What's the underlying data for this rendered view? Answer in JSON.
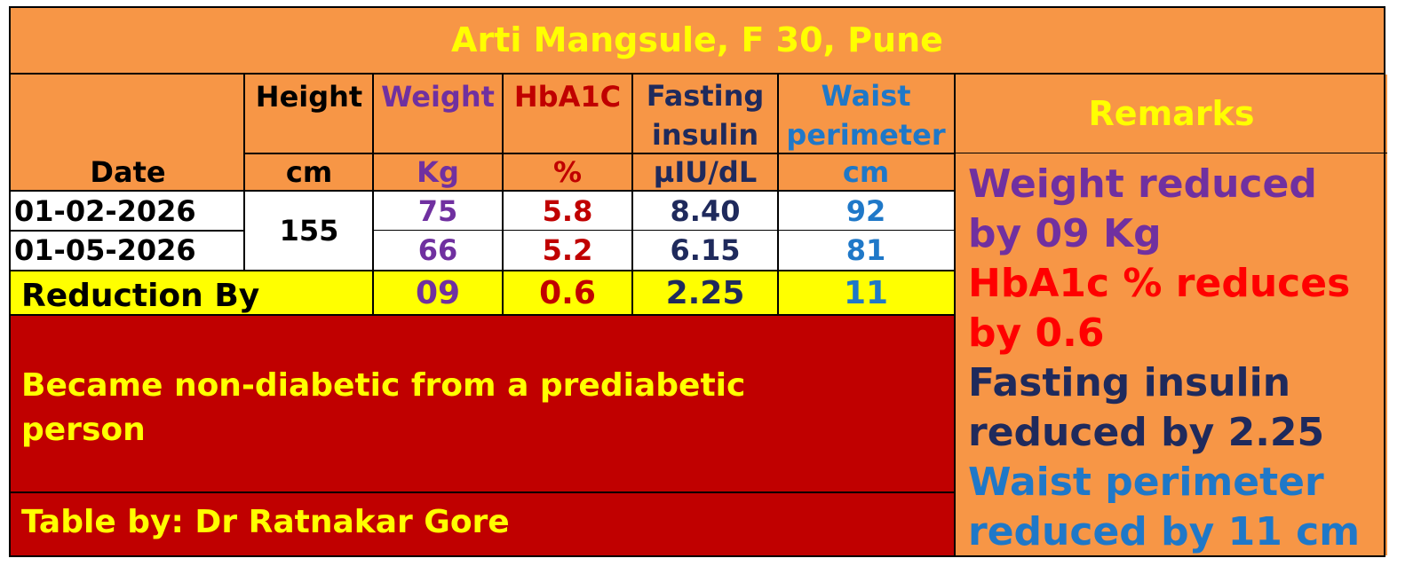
{
  "title": "Arti Mangsule, F 30, Pune",
  "columns": {
    "date": {
      "label": "Date"
    },
    "height": {
      "label": "Height",
      "unit": "cm"
    },
    "weight": {
      "label": "Weight",
      "unit": "Kg"
    },
    "hba1c": {
      "label": "HbA1C",
      "unit": "%"
    },
    "fasting": {
      "label_line1": "Fasting",
      "label_line2": "insulin",
      "unit": "µIU/dL"
    },
    "waist": {
      "label_line1": "Waist",
      "label_line2": "perimeter",
      "unit": "cm"
    }
  },
  "remarks_header": "Remarks",
  "height_value": "155",
  "rows": [
    {
      "date": "01-02-2026",
      "weight": "75",
      "hba1c": "5.8",
      "fasting": "8.40",
      "waist": "92"
    },
    {
      "date": "01-05-2026",
      "weight": "66",
      "hba1c": "5.2",
      "fasting": "6.15",
      "waist": "81"
    }
  ],
  "reduction": {
    "label": "Reduction By",
    "weight": "09",
    "hba1c": "0.6",
    "fasting": "2.25",
    "waist": "11"
  },
  "remarks": {
    "weight_line1": "Weight reduced",
    "weight_line2": "by 09 Kg",
    "hba1c_line1": "HbA1c % reduces",
    "hba1c_line2": "by 0.6",
    "fasting_line1": "Fasting insulin",
    "fasting_line2": "reduced by 2.25",
    "waist_line1": "Waist perimeter",
    "waist_line2": "reduced by 11 cm"
  },
  "conclusion_line1": "Became non-diabetic from a prediabetic",
  "conclusion_line2": "person",
  "credit": "Table by: Dr Ratnakar Gore",
  "colors": {
    "orange": "#f79646",
    "yellow": "#ffff00",
    "dark_red": "#c00000",
    "purple": "#7030a0",
    "navy": "#1f2a5c",
    "blue": "#1f78c8",
    "bright_red": "#ff0000"
  }
}
